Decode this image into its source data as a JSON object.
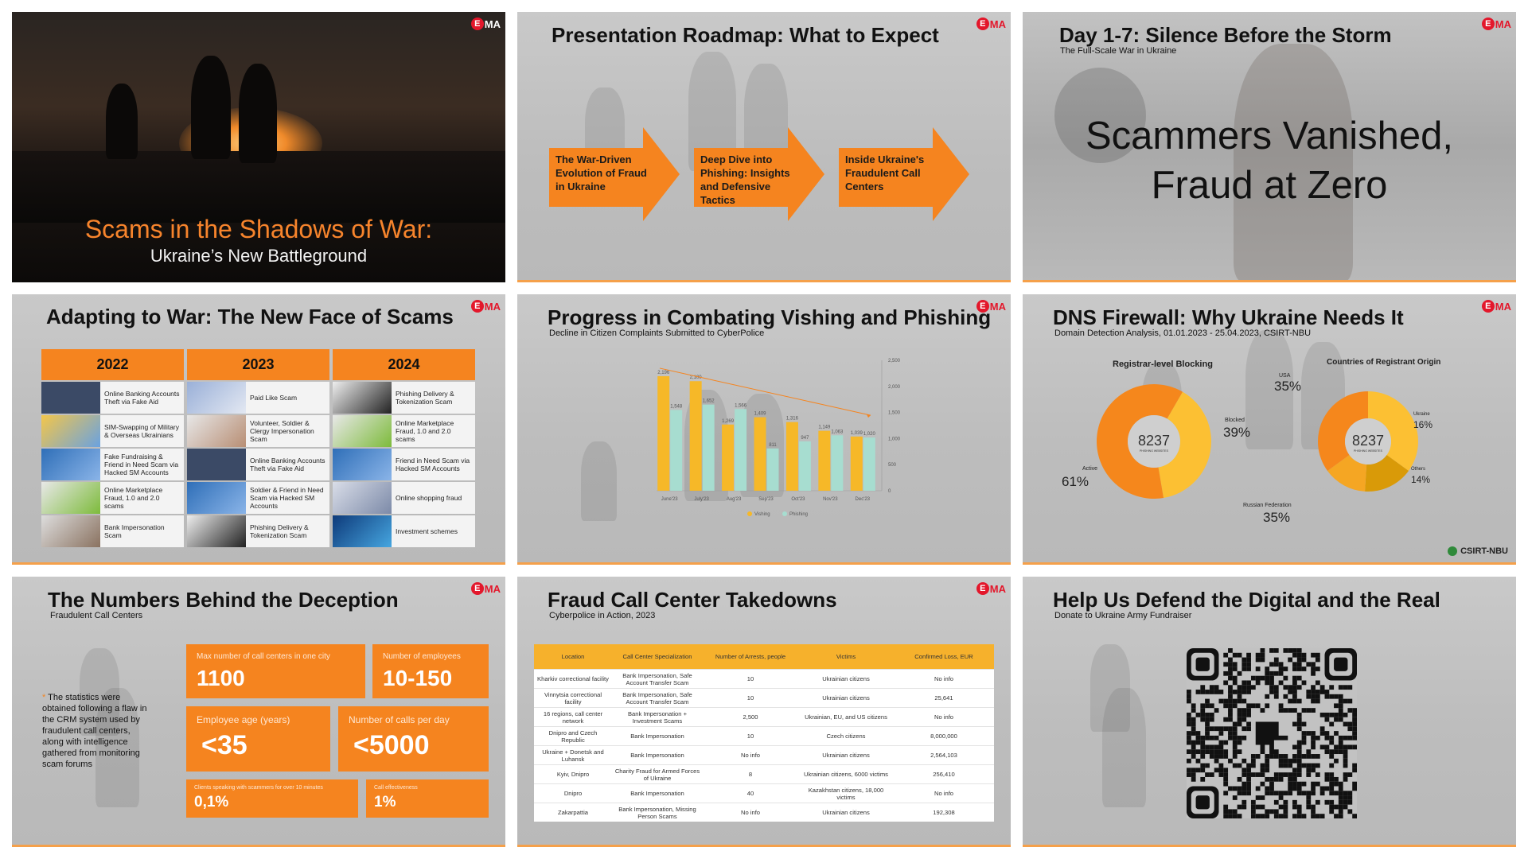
{
  "brand": {
    "logo_mark": "E",
    "logo_text": "MA",
    "accent": "#f5841f",
    "red": "#e3172b"
  },
  "slides": {
    "s1": {
      "title": "Scams in the Shadows of War:",
      "subtitle": "Ukraine’s New Battleground"
    },
    "s2": {
      "title": "Presentation Roadmap: What to Expect",
      "steps": [
        "The War-Driven Evolution of Fraud in Ukraine",
        "Deep Dive into Phishing: Insights and Defensive Tactics",
        "Inside Ukraine's Fraudulent Call Centers"
      ]
    },
    "s3": {
      "title": "Day 1-7: Silence Before the Storm",
      "subtitle": "The Full-Scale War in Ukraine",
      "line1": "Scammers Vanished,",
      "line2": "Fraud at Zero"
    },
    "s4": {
      "title": "Adapting to War: The New Face of Scams",
      "years": [
        "2022",
        "2023",
        "2024"
      ],
      "col_2022": [
        "Online Banking Accounts Theft via Fake Aid",
        "SIM-Swapping of Military & Overseas Ukrainians",
        "Fake Fundraising & Friend in Need Scam via Hacked SM Accounts",
        "Online Marketplace Fraud, 1.0 and 2.0 scams",
        "Bank Impersonation Scam"
      ],
      "col_2023": [
        "Paid Like Scam",
        "Volunteer, Soldier & Clergy Impersonation Scam",
        "Online Banking Accounts Theft via Fake Aid",
        "Soldier & Friend in Need Scam via Hacked SM Accounts",
        "Phishing Delivery & Tokenization Scam"
      ],
      "col_2024": [
        "Phishing Delivery & Tokenization Scam",
        "Online Marketplace Fraud, 1.0 and 2.0 scams",
        "Friend in Need Scam via Hacked SM Accounts",
        "Online shopping fraud",
        "Investment schemes"
      ]
    },
    "s5": {
      "title": "Progress in Combating Vishing and Phishing",
      "subtitle": "Decline in Citizen Complaints Submitted to CyberPolice"
    },
    "s6": {
      "title": "DNS Firewall: Why Ukraine Needs It",
      "subtitle": "Domain Detection Analysis, 01.01.2023 - 25.04.2023, CSIRT-NBU",
      "d1_title": "Registrar-level Blocking",
      "d1_center": "8237",
      "d1_center_sub": "PHISHING WEBSITES",
      "d1_blocked_lbl": "Blocked",
      "d1_blocked_pct": "39%",
      "d1_active_lbl": "Active",
      "d1_active_pct": "61%",
      "d2_title": "Countries of Registrant Origin",
      "d2_center": "8237",
      "d2_center_sub": "PHISHING WEBSITES",
      "d2_usa_lbl": "USA",
      "d2_usa_pct": "35%",
      "d2_ua_lbl": "Ukraine",
      "d2_ua_pct": "16%",
      "d2_oth_lbl": "Others",
      "d2_oth_pct": "14%",
      "d2_ru_lbl": "Russian Federation",
      "d2_ru_pct": "35%",
      "footer": "CSIRT-NBU"
    },
    "s7": {
      "title": "The Numbers Behind the Deception",
      "subtitle": "Fraudulent Call Centers",
      "note_ast": "*",
      "note": "The statistics were obtained following a flaw in the CRM system used by fraudulent call centers, along with intelligence gathered from monitoring scam forums",
      "b1_lbl": "Max number of call centers in one city",
      "b1_val": "1100",
      "b2_lbl": "Number of employees",
      "b2_val": "10-150",
      "b3_lbl": "Employee age (years)",
      "b3_val": "<35",
      "b4_lbl": "Number of calls per day",
      "b4_val": "<5000",
      "b5_lbl": "Clients speaking with scammers for over 10 minutes",
      "b5_val": "0,1%",
      "b6_lbl": "Call effectiveness",
      "b6_val": "1%"
    },
    "s8": {
      "title": "Fraud Call Center Takedowns",
      "subtitle": "Cyberpolice in Action, 2023",
      "headers": [
        "Location",
        "Call Center Specialization",
        "Number of Arrests, people",
        "Victims",
        "Confirmed Loss, EUR"
      ],
      "rows": [
        [
          "Kharkiv correctional facility",
          "Bank Impersonation, Safe Account Transfer Scam",
          "10",
          "Ukrainian citizens",
          "No info"
        ],
        [
          "Vinnytsia correctional facility",
          "Bank Impersonation, Safe Account Transfer Scam",
          "10",
          "Ukrainian citizens",
          "25,641"
        ],
        [
          "16 regions, call center network",
          "Bank Impersonation + Investment Scams",
          "2,500",
          "Ukrainian, EU, and US citizens",
          "No info"
        ],
        [
          "Dnipro and Czech Republic",
          "Bank Impersonation",
          "10",
          "Czech citizens",
          "8,000,000"
        ],
        [
          "Ukraine + Donetsk and Luhansk",
          "Bank Impersonation",
          "No info",
          "Ukrainian citizens",
          "2,564,103"
        ],
        [
          "Kyiv, Dnipro",
          "Charity Fraud for Armed Forces of Ukraine",
          "8",
          "Ukrainian citizens, 6000 victims",
          "256,410"
        ],
        [
          "Dnipro",
          "Bank Impersonation",
          "40",
          "Kazakhstan citizens, 18,000 victims",
          "No info"
        ],
        [
          "Zakarpattia",
          "Bank Impersonation, Missing Person Scams",
          "No info",
          "Ukrainian citizens",
          "192,308"
        ]
      ]
    },
    "s9": {
      "title": "Help Us Defend the Digital and the Real",
      "subtitle": "Donate to Ukraine Army Fundraiser"
    }
  },
  "chart_data": [
    {
      "type": "bar",
      "categories": [
        "June'23",
        "July'23",
        "Aug'23",
        "Sep'23",
        "Oct'23",
        "Nov'23",
        "Dec'23"
      ],
      "series": [
        {
          "name": "Vishing",
          "values": [
            2196,
            2100,
            1269,
            1409,
            1316,
            1149,
            1039
          ],
          "color": "#f6b828"
        },
        {
          "name": "Phishing",
          "values": [
            1548,
            1652,
            1566,
            811,
            947,
            1063,
            1020
          ],
          "color": "#a7ddd0"
        }
      ],
      "ylim": [
        0,
        2500
      ],
      "yticks": [
        0,
        500,
        1000,
        1500,
        2000,
        2500
      ],
      "ytick_labels": [
        "0",
        "500",
        "1,000",
        "1,500",
        "2,000",
        "2,500"
      ],
      "value_labels_vishing": [
        "2,196",
        "2,100",
        "1,269",
        "1,409",
        "1,316",
        "1,149",
        "1,039"
      ],
      "value_labels_phishing": [
        "1,548",
        "1,652",
        "1,566",
        "811",
        "947",
        "1,063",
        "1,020"
      ],
      "trend_line": true,
      "legend": "bottom"
    },
    {
      "type": "pie",
      "title": "Registrar-level Blocking",
      "labels": [
        "Blocked",
        "Active"
      ],
      "values": [
        39,
        61
      ],
      "colors": [
        "#fcc033",
        "#f5871c"
      ]
    },
    {
      "type": "pie",
      "title": "Countries of Registrant Origin",
      "labels": [
        "USA",
        "Ukraine",
        "Others",
        "Russian Federation"
      ],
      "values": [
        35,
        16,
        14,
        35
      ],
      "colors": [
        "#fcc033",
        "#d99a08",
        "#f5a623",
        "#f5871c"
      ]
    }
  ]
}
